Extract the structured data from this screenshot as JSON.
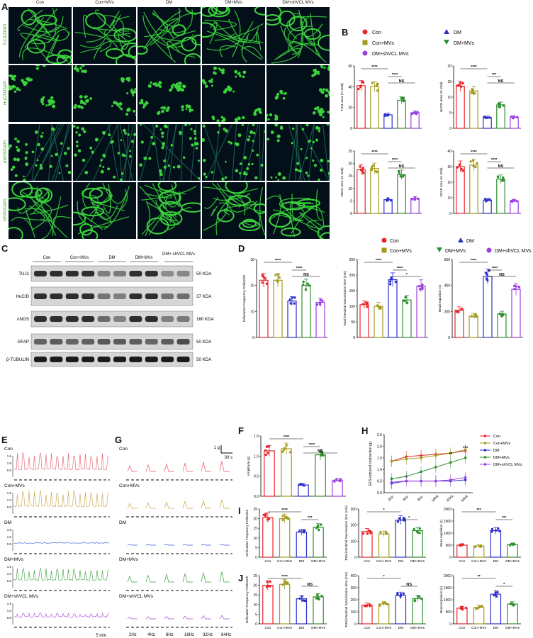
{
  "panel_letters": [
    "A",
    "B",
    "C",
    "D",
    "E",
    "F",
    "G",
    "H",
    "I",
    "J"
  ],
  "groups5": [
    "Con",
    "Con+MVs",
    "DM",
    "DM+MVs",
    "DM+shVCL MVs"
  ],
  "groups4": [
    "Con",
    "Con+MVs",
    "DM",
    "DM+MVs"
  ],
  "colors": {
    "Con": "#e8262a",
    "Con+MVs": "#a39b1f",
    "DM": "#2c31c8",
    "DM+MVs": "#2e8f2e",
    "DM+shVCL MVs": "#9b3fe0"
  },
  "panelA": {
    "columns": [
      "Con",
      "Con+MVs",
      "DM",
      "DM+MVs",
      "DM+shVCL MVs"
    ],
    "rows": [
      "TUJ1/DAPI",
      "HuC/D/DAPI",
      "nNOS/DAPI",
      "GFAP/DAPI"
    ]
  },
  "panelB": {
    "legend": [
      "Con",
      "Con+MVs",
      "DM+shVCL MVs",
      "DM",
      "DM+MVs"
    ],
    "charts": [
      {
        "ylabel": "TUJ1 area (% total)",
        "ymax": 60,
        "ticks": [
          "0",
          "20",
          "40",
          "60"
        ],
        "values": [
          41,
          40,
          13,
          27,
          15
        ],
        "sig": [
          "****",
          "****",
          "NS"
        ]
      },
      {
        "ylabel": "HuC/D area (% total)",
        "ymax": 20,
        "ticks": [
          "0",
          "5",
          "10",
          "15",
          "20"
        ],
        "values": [
          13.5,
          12,
          3.5,
          7.5,
          3.5
        ],
        "sig": [
          "****",
          "***",
          "NS"
        ]
      },
      {
        "ylabel": "nNOS area (% total)",
        "ymax": 25,
        "ticks": [
          "0",
          "5",
          "10",
          "15",
          "20",
          "25"
        ],
        "values": [
          17.5,
          18,
          5.5,
          15.5,
          6
        ],
        "sig": [
          "****",
          "****",
          "NS"
        ]
      },
      {
        "ylabel": "GFAP area (% total)",
        "ymax": 40,
        "ticks": [
          "0",
          "10",
          "20",
          "30",
          "40"
        ],
        "values": [
          30,
          31,
          8.5,
          22,
          8
        ],
        "sig": [
          "****",
          "****",
          "NS"
        ]
      }
    ]
  },
  "panelC": {
    "columns": [
      "Con",
      "Con+MVs",
      "DM",
      "DM+MVs",
      "DM+ shVCL MVs"
    ],
    "rows": [
      {
        "name": "TUJ1",
        "kda": "50 KDA"
      },
      {
        "name": "HuC/D",
        "kda": "37 KDA"
      },
      {
        "name": "nNOS",
        "kda": "160 KDA"
      },
      {
        "name": "GFAP",
        "kda": "50 KDA"
      },
      {
        "name": "β-TUBULIN",
        "kda": "50 KDA"
      }
    ]
  },
  "panelD": {
    "legend": [
      "Con",
      "Con+MVs",
      "DM",
      "DM+MVs",
      "DM+shVCL MVs"
    ],
    "charts": [
      {
        "ylabel": "Defecation Frequency Pellets/5h",
        "ymax": 30,
        "ticks": [
          "0",
          "10",
          "20",
          "30"
        ],
        "values": [
          22,
          22,
          14,
          20,
          13.5
        ],
        "sig": [
          "****",
          "****",
          "NS"
        ]
      },
      {
        "ylabel": "Total intestinal transmission time (min)",
        "ymax": 250,
        "ticks": [
          "0",
          "50",
          "100",
          "150",
          "200",
          "250"
        ],
        "values": [
          105,
          100,
          185,
          120,
          165
        ],
        "sig": [
          "****",
          "****",
          "*"
        ]
      },
      {
        "ylabel": "Bead expulsion (s)",
        "ymax": 600,
        "ticks": [
          "0",
          "200",
          "400",
          "600"
        ],
        "values": [
          210,
          165,
          470,
          180,
          370
        ],
        "sig": [
          "****",
          "****",
          "NS"
        ]
      }
    ]
  },
  "panelE": {
    "traces": [
      "Con",
      "Con+MVs",
      "DM",
      "DM+MVs",
      "DM+shVCL MVs"
    ],
    "yticks": [
      "0.5",
      "1.0",
      "1.5"
    ],
    "scale_x": "5 min"
  },
  "panelG": {
    "traces": [
      "Con",
      "Con+MVs",
      "DM",
      "DM+MVs",
      "DM+shVCL MVs"
    ],
    "scale_y": "1 g",
    "scale_x": "30 s",
    "freqs": [
      "2Hz",
      "4Hz",
      "8Hz",
      "16Hz",
      "32Hz",
      "64Hz"
    ]
  },
  "chart_data": [
    {
      "type": "bar",
      "panel": "F",
      "ylabel": "Amplitude (g)",
      "categories": [
        "Con",
        "Con+MVs",
        "DM",
        "DM+MVs",
        "DM+shVCL MVs"
      ],
      "values": [
        1.13,
        1.18,
        0.28,
        1.03,
        0.4
      ],
      "ylim": [
        0,
        1.5
      ],
      "ticks": [
        "0.0",
        "0.5",
        "1.0",
        "1.5"
      ],
      "sig": [
        "****",
        "****",
        "NS"
      ]
    },
    {
      "type": "line",
      "panel": "H",
      "ylabel": "EFS-induced contraction (g)",
      "x": [
        "2Hz",
        "4Hz",
        "8Hz",
        "16Hz",
        "32Hz",
        "64Hz"
      ],
      "ylim": [
        0,
        2.5
      ],
      "ticks": [
        "0.0",
        "0.5",
        "1.0",
        "1.5",
        "2.0",
        "2.5"
      ],
      "series": [
        {
          "name": "Con",
          "values": [
            1.35,
            1.55,
            1.6,
            1.65,
            1.7,
            1.8
          ]
        },
        {
          "name": "Con+MVs",
          "values": [
            1.35,
            1.45,
            1.5,
            1.6,
            1.7,
            1.85
          ]
        },
        {
          "name": "DM",
          "values": [
            0.4,
            0.5,
            0.5,
            0.5,
            0.5,
            0.55
          ]
        },
        {
          "name": "DM+MVs",
          "values": [
            0.6,
            0.7,
            0.9,
            1.1,
            1.3,
            1.5
          ]
        },
        {
          "name": "DM+shVCL MVs",
          "values": [
            0.45,
            0.5,
            0.5,
            0.5,
            0.55,
            0.65
          ]
        }
      ],
      "annotations": [
        "**",
        "***"
      ]
    }
  ],
  "panelI": {
    "charts": [
      {
        "ylabel": "Defecation Frequency Pellets/5h",
        "ymax": 25,
        "ticks": [
          "0",
          "5",
          "10",
          "15",
          "20",
          "25"
        ],
        "values": [
          20.5,
          20,
          13,
          15.5
        ],
        "sig": [
          "****",
          "***"
        ]
      },
      {
        "ylabel": "Total intestinal transmission time (min)",
        "ymax": 300,
        "ticks": [
          "0",
          "100",
          "200",
          "300"
        ],
        "values": [
          160,
          145,
          230,
          165
        ],
        "sig": [
          "*",
          "*"
        ]
      },
      {
        "ylabel": "Bead expulsion (s)",
        "ymax": 2000,
        "ticks": [
          "0",
          "500",
          "1000",
          "1500",
          "2000"
        ],
        "values": [
          500,
          470,
          1100,
          520
        ],
        "sig": [
          "***",
          "***"
        ]
      }
    ]
  },
  "panelJ": {
    "charts": [
      {
        "ylabel": "Defecation Frequency Pellets/5h",
        "ymax": 25,
        "ticks": [
          "0",
          "5",
          "10",
          "15",
          "20",
          "25"
        ],
        "values": [
          20,
          20.5,
          13,
          14
        ],
        "sig": [
          "****",
          "NS"
        ]
      },
      {
        "ylabel": "Total intestinal transmission time (min)",
        "ymax": 400,
        "ticks": [
          "0",
          "100",
          "200",
          "300",
          "400"
        ],
        "values": [
          155,
          165,
          235,
          210
        ],
        "sig": [
          "*",
          "NS"
        ]
      },
      {
        "ylabel": "Bead expulsion (s)",
        "ymax": 2000,
        "ticks": [
          "0",
          "500",
          "1000",
          "1500",
          "2000"
        ],
        "values": [
          650,
          680,
          1230,
          820
        ],
        "sig": [
          "**",
          "*"
        ]
      }
    ]
  }
}
